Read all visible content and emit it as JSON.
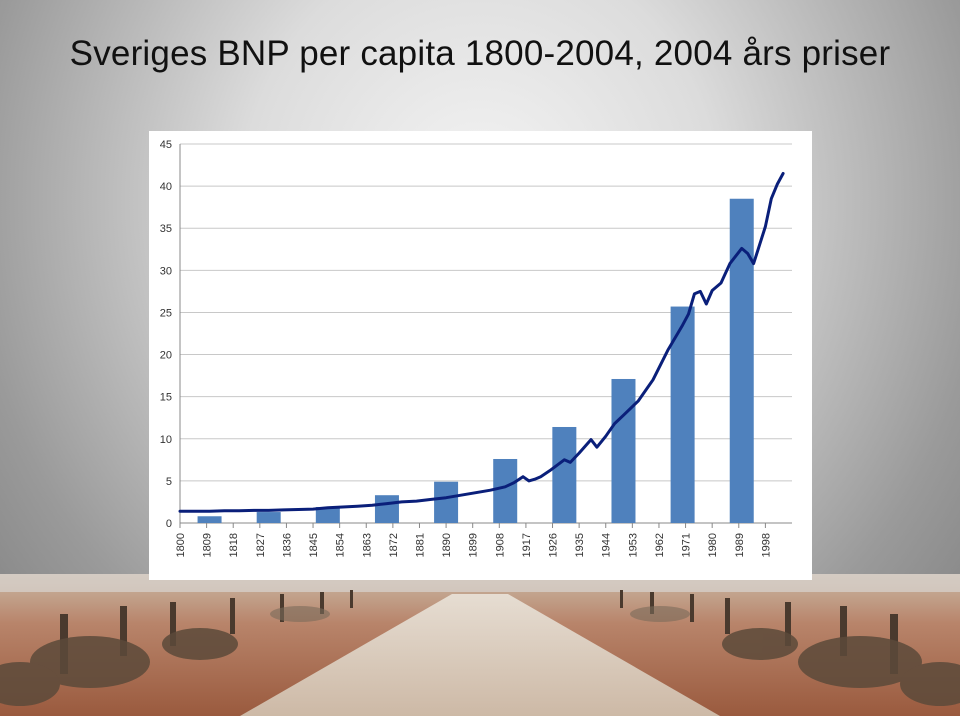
{
  "slide": {
    "title": "Sveriges BNP per capita 1800-2004, 2004 års priser"
  },
  "chart_data": {
    "type": "bar",
    "title": "",
    "xlabel": "",
    "ylabel": "",
    "ylim": [
      0,
      45
    ],
    "yticks": [
      0,
      5,
      10,
      15,
      20,
      25,
      30,
      35,
      40,
      45
    ],
    "grid": true,
    "legend": "none",
    "colors": {
      "bar": "#4f81bd",
      "line": "#0a1f7a",
      "grid": "#c8c8c8",
      "axis_text": "#333333"
    },
    "categories": [
      "1800",
      "1809",
      "1818",
      "1827",
      "1836",
      "1845",
      "1854",
      "1863",
      "1872",
      "1881",
      "1890",
      "1899",
      "1908",
      "1917",
      "1926",
      "1935",
      "1944",
      "1953",
      "1962",
      "1971",
      "1980",
      "1989",
      "1998"
    ],
    "series": [
      {
        "type": "bar",
        "x": [
          1810,
          1830,
          1850,
          1870,
          1890,
          1910,
          1930,
          1950,
          1970,
          1990
        ],
        "values": [
          0.8,
          1.3,
          1.9,
          3.3,
          4.9,
          7.6,
          11.4,
          17.1,
          25.7,
          38.5
        ]
      },
      {
        "type": "line",
        "x": [
          1800,
          1805,
          1810,
          1815,
          1820,
          1825,
          1830,
          1835,
          1840,
          1845,
          1850,
          1855,
          1860,
          1865,
          1870,
          1875,
          1880,
          1885,
          1890,
          1895,
          1900,
          1905,
          1910,
          1913,
          1916,
          1918,
          1920,
          1922,
          1925,
          1930,
          1932,
          1935,
          1939,
          1941,
          1944,
          1947,
          1950,
          1955,
          1960,
          1965,
          1970,
          1972,
          1974,
          1976,
          1978,
          1980,
          1983,
          1986,
          1990,
          1992,
          1994,
          1996,
          1998,
          2000,
          2002,
          2004
        ],
        "values": [
          1.4,
          1.4,
          1.4,
          1.45,
          1.45,
          1.5,
          1.5,
          1.55,
          1.6,
          1.65,
          1.8,
          1.9,
          2.0,
          2.1,
          2.3,
          2.5,
          2.6,
          2.8,
          3.0,
          3.3,
          3.6,
          3.9,
          4.3,
          4.8,
          5.5,
          5.0,
          5.2,
          5.5,
          6.2,
          7.5,
          7.2,
          8.3,
          9.9,
          9.0,
          10.3,
          11.8,
          12.8,
          14.5,
          17.0,
          20.5,
          23.5,
          24.8,
          27.2,
          27.5,
          26.0,
          27.6,
          28.5,
          30.8,
          32.6,
          32.0,
          30.8,
          33.0,
          35.2,
          38.5,
          40.2,
          41.5
        ]
      }
    ]
  }
}
